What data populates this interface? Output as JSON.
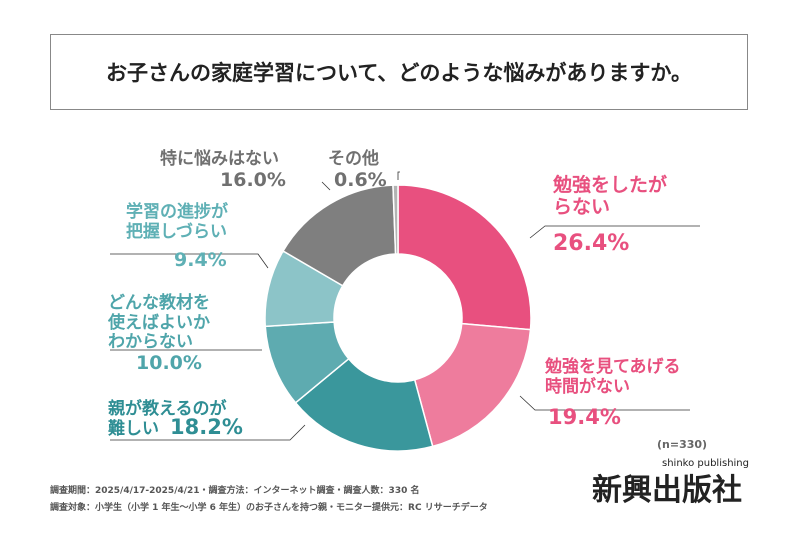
{
  "chart_data": {
    "type": "pie",
    "title": "お子さんの家庭学習について、どのような悩みがありますか。",
    "categories": [
      "勉強をしたがらない",
      "勉強を見てあげる時間がない",
      "親が教えるのが難しい",
      "どんな教材を使えばよいかわからない",
      "学習の進捗が把握しづらい",
      "特に悩みはない",
      "その他"
    ],
    "values": [
      26.4,
      19.4,
      18.2,
      10.0,
      9.4,
      16.0,
      0.6
    ],
    "labels": [
      "26.4%",
      "19.4%",
      "18.2%",
      "10.0%",
      "9.4%",
      "16.0%",
      "0.6%"
    ],
    "colors": [
      "#e8507f",
      "#ee7c9d",
      "#3a979c",
      "#5eabb0",
      "#8cc4c8",
      "#7f7f7f",
      "#b3b3b3"
    ],
    "label_colors": [
      "#e8507f",
      "#e8507f",
      "#2f8e94",
      "#4fa5aa",
      "#5fb0b5",
      "#707070",
      "#707070"
    ],
    "legend": "none"
  },
  "note_n": "(n=330)",
  "footer": [
    "調査期間：2025/4/17-2025/4/21・調査方法：インターネット調査・調査人数：330 名",
    "調査対象：小学生（小学 1 年生～小学 6 年生）のお子さんを持つ親・モニター提供元：RC リサーチデータ"
  ],
  "logo": {
    "text": "新興出版社",
    "sub": "shinko publishing"
  }
}
